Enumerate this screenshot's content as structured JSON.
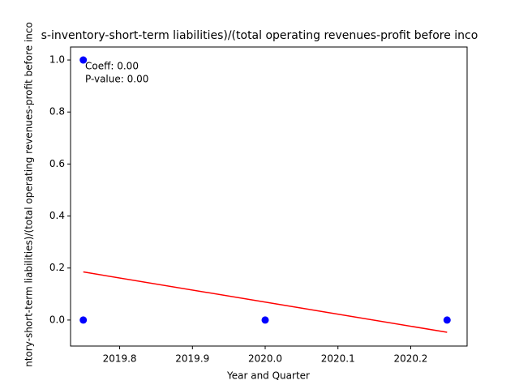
{
  "chart_data": {
    "type": "scatter",
    "title": "s-inventory-short-term liabilities)/(total operating revenues-profit before inco",
    "x_label": "Year and Quarter",
    "y_label": "ntory-short-term liabilities)/(total operating revenues-profit before inco",
    "annotations": [
      "Coeff: 0.00",
      "P-value: 0.00"
    ],
    "series": [
      {
        "color": "#0000ff",
        "x": [
          2019.75,
          2019.75,
          2020.0,
          2020.25
        ],
        "values": [
          1,
          0,
          0,
          0
        ]
      }
    ],
    "fit_line": {
      "color": "#ff0000",
      "x": [
        2019.75,
        2020.25
      ],
      "values": [
        0.185,
        -0.047
      ]
    },
    "xlim": [
      2019.7325,
      2020.2775
    ],
    "ylim": [
      -0.1,
      1.05
    ],
    "xticks": [
      2019.8,
      2019.9,
      {
        "value": 2020.0,
        "label": "2020.0"
      },
      2020.1,
      2020.2
    ],
    "yticks": [
      {
        "value": 0.0,
        "label": "0.0"
      },
      0.2,
      0.4,
      0.6,
      0.8,
      {
        "value": 1.0,
        "label": "1.0"
      }
    ]
  }
}
